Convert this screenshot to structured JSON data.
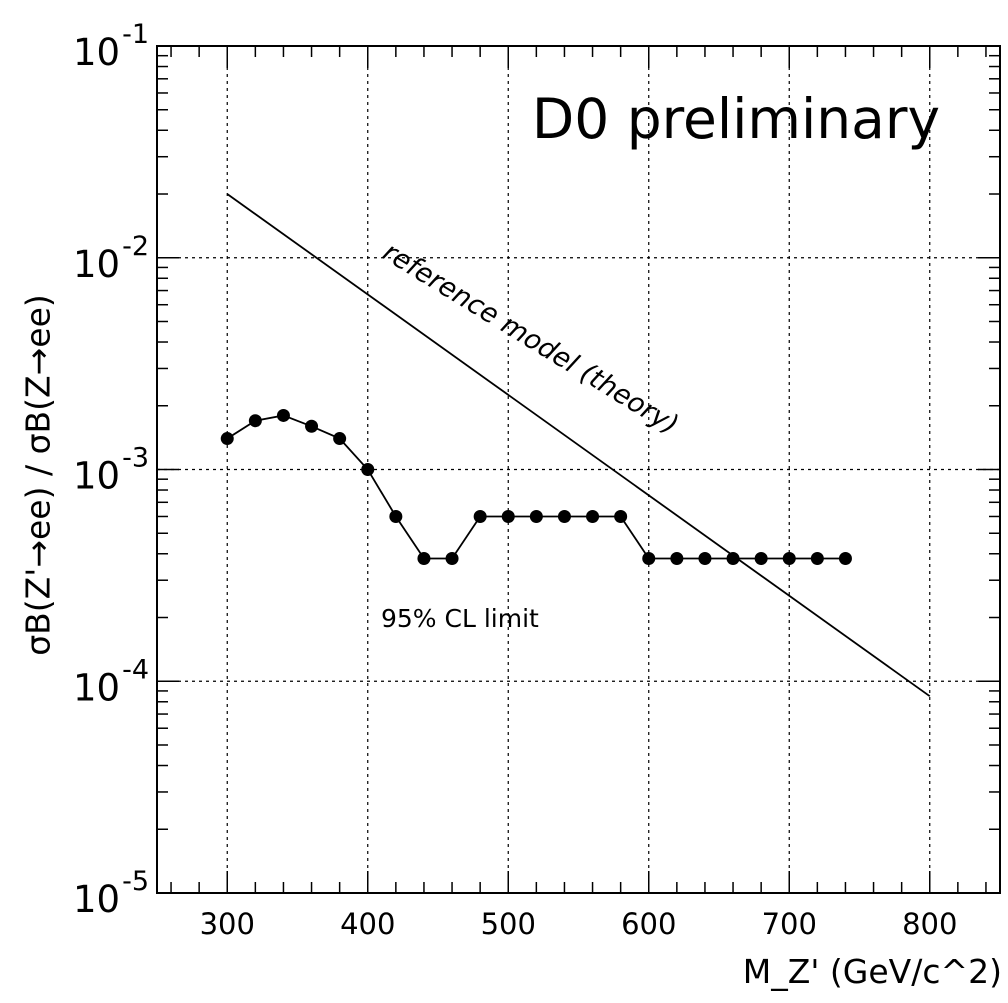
{
  "chart_data": {
    "type": "line",
    "title": "D0 preliminary",
    "xlabel": "M_Z' (GeV/c^2)",
    "ylabel": "σB(Z'→ee) / σB(Z→ee)",
    "xlim": [
      250,
      850
    ],
    "ylim": [
      1e-05,
      0.1
    ],
    "yscale": "log",
    "grid": true,
    "x_ticks": [
      {
        "value": 300,
        "label": "300"
      },
      {
        "value": 400,
        "label": "400"
      },
      {
        "value": 500,
        "label": "500"
      },
      {
        "value": 600,
        "label": "600"
      },
      {
        "value": 700,
        "label": "700"
      },
      {
        "value": 800,
        "label": "800"
      }
    ],
    "y_ticks": [
      {
        "value": 0.1,
        "base": "10",
        "exp": "-1"
      },
      {
        "value": 0.01,
        "base": "10",
        "exp": "-2"
      },
      {
        "value": 0.001,
        "base": "10",
        "exp": "-3"
      },
      {
        "value": 0.0001,
        "base": "10",
        "exp": "-4"
      },
      {
        "value": 1e-05,
        "base": "10",
        "exp": "-5"
      }
    ],
    "series": [
      {
        "name": "95% CL limit",
        "style": "markers+line",
        "x": [
          300,
          320,
          340,
          360,
          380,
          400,
          420,
          440,
          460,
          480,
          500,
          520,
          540,
          560,
          580,
          600,
          620,
          640,
          660,
          680,
          700,
          720,
          740
        ],
        "y": [
          0.0014,
          0.0017,
          0.0018,
          0.0016,
          0.0014,
          0.001,
          0.0006,
          0.00038,
          0.00038,
          0.0006,
          0.0006,
          0.0006,
          0.0006,
          0.0006,
          0.0006,
          0.00038,
          0.00038,
          0.00038,
          0.00038,
          0.00038,
          0.00038,
          0.00038,
          0.00038
        ]
      },
      {
        "name": "reference model (theory)",
        "style": "line",
        "x": [
          300,
          800
        ],
        "y": [
          0.02,
          8.5e-05
        ]
      }
    ],
    "annotations": [
      {
        "text": "D0 preliminary"
      },
      {
        "text": "reference model (theory)"
      },
      {
        "text": "95% CL limit"
      }
    ]
  }
}
